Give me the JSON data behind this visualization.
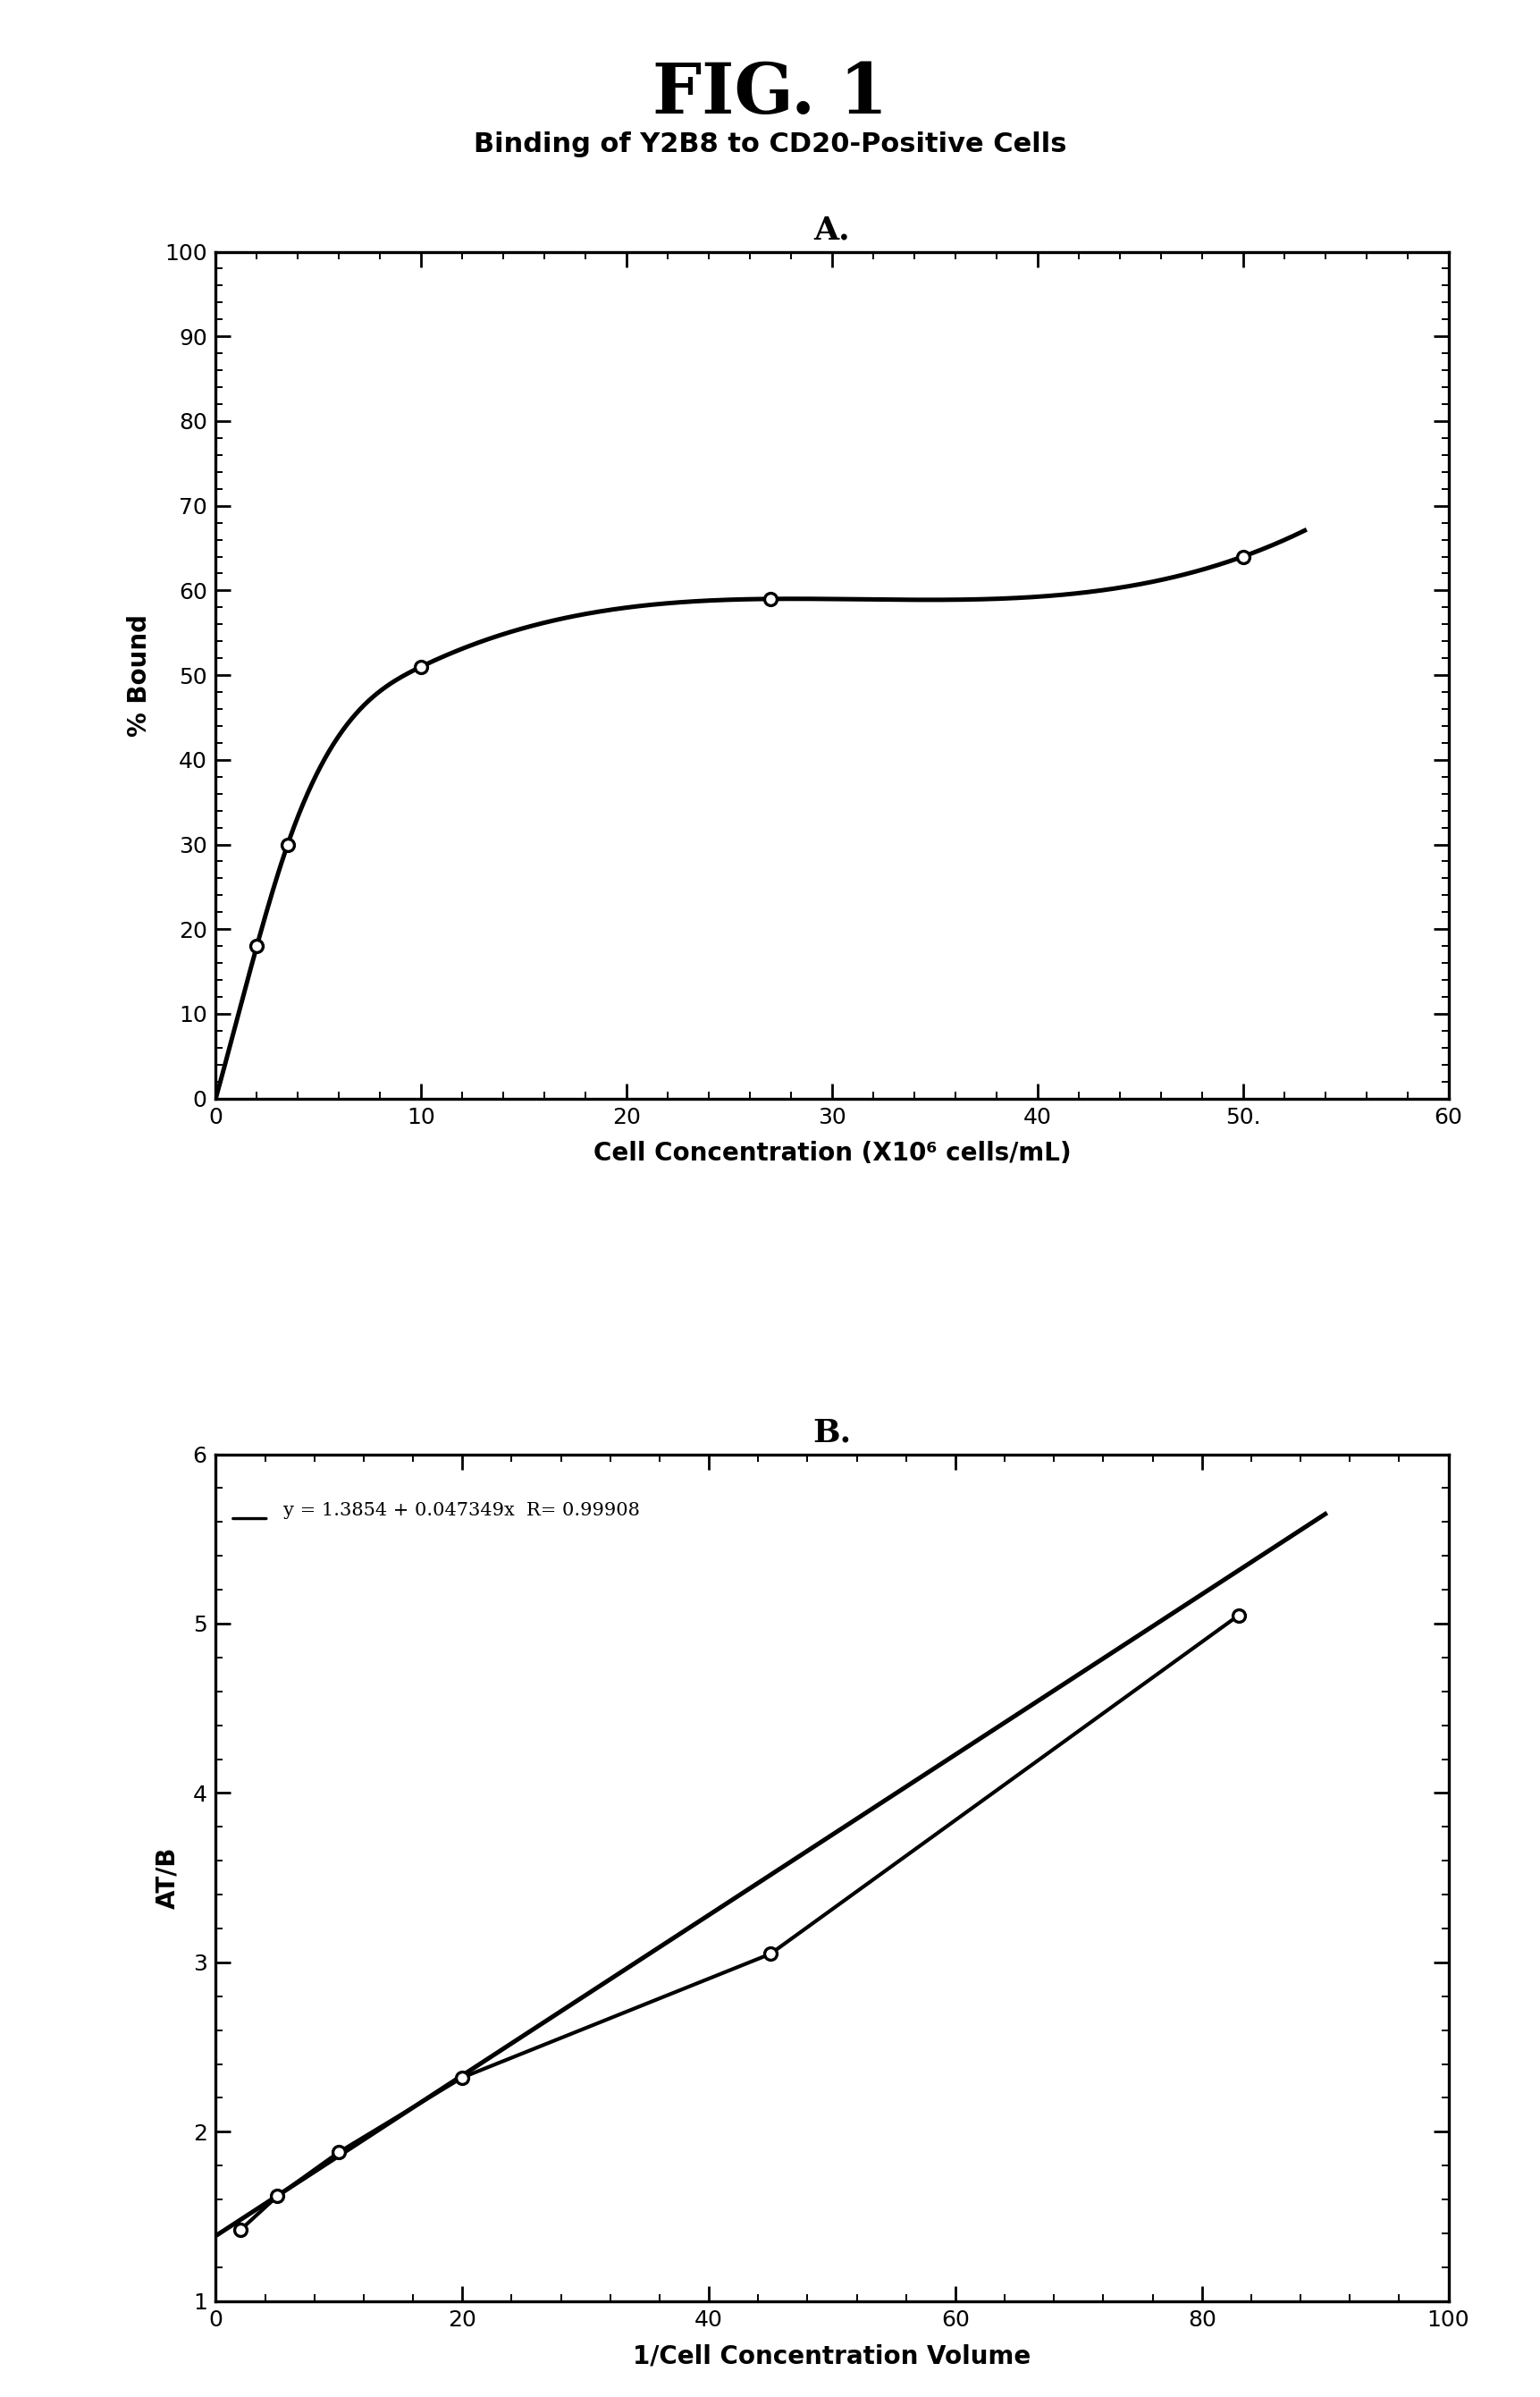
{
  "fig_title": "FIG. 1",
  "subtitle": "Binding of Y2B8 to CD20-Positive Cells",
  "plot_a": {
    "label": "A.",
    "x": [
      2,
      3.5,
      10,
      27,
      50
    ],
    "y": [
      18,
      30,
      51,
      59,
      64
    ],
    "xlabel": "Cell Concentration (X10⁶ cells/mL)",
    "ylabel": "% Bound",
    "xlim": [
      0,
      60
    ],
    "ylim": [
      0,
      100
    ],
    "xticks": [
      0,
      10,
      20,
      30,
      40,
      50,
      60
    ],
    "xtick_labels": [
      "0",
      "10",
      "20",
      "30",
      "40",
      "50.",
      "60"
    ],
    "yticks": [
      0,
      10,
      20,
      30,
      40,
      50,
      60,
      70,
      80,
      90,
      100
    ],
    "x_minor": 2,
    "y_minor": 2
  },
  "plot_b": {
    "label": "B.",
    "x_data": [
      2,
      5,
      10,
      20,
      45,
      83
    ],
    "y_data": [
      1.42,
      1.62,
      1.88,
      2.32,
      3.05,
      5.05
    ],
    "xlabel": "1/Cell Concentration Volume",
    "ylabel": "AT/B",
    "xlim": [
      0,
      100
    ],
    "ylim": [
      1,
      6
    ],
    "xticks": [
      0,
      20,
      40,
      60,
      80,
      100
    ],
    "xtick_labels": [
      "0",
      "20",
      "40",
      "60",
      "80",
      "100"
    ],
    "yticks": [
      1,
      2,
      3,
      4,
      5,
      6
    ],
    "equation": "y = 1.3854 + 0.047349x  R= 0.99908",
    "slope": 0.047349,
    "intercept": 1.3854,
    "x_line_start": 0,
    "x_line_end": 90,
    "x_minor": 4,
    "y_minor": 0.2
  },
  "background_color": "#ffffff",
  "line_color": "#000000",
  "marker_facecolor": "#ffffff",
  "marker_edgecolor": "#000000"
}
